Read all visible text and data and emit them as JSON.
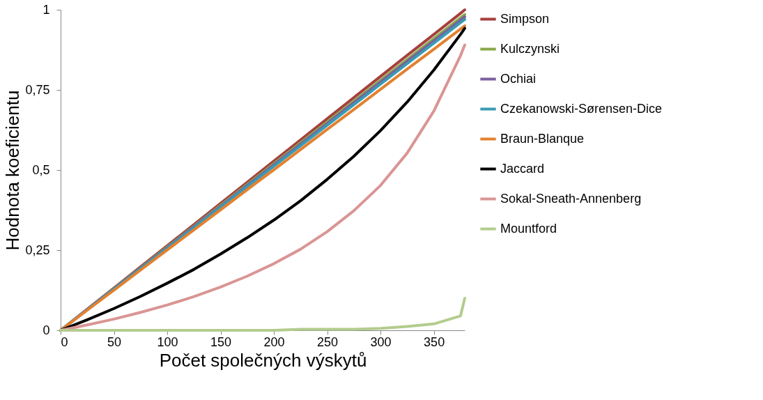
{
  "chart_data": {
    "type": "line",
    "xlabel": "Počet společných výskytů",
    "ylabel": "Hodnota koeficientu",
    "x": [
      0,
      25,
      50,
      75,
      100,
      125,
      150,
      175,
      200,
      225,
      250,
      275,
      300,
      325,
      350,
      375,
      379
    ],
    "xlim": [
      0,
      379
    ],
    "xticks": [
      0,
      50,
      100,
      150,
      200,
      250,
      300,
      350
    ],
    "ylim": [
      0,
      1
    ],
    "yticks": [
      0,
      {
        "value": 0.25,
        "label": "0,25"
      },
      {
        "value": 0.5,
        "label": "0,5"
      },
      {
        "value": 0.75,
        "label": "0,75"
      },
      1
    ],
    "grid": false,
    "legend": "right",
    "marker": "none",
    "line_style": "solid",
    "series": [
      {
        "name": "Simpson",
        "color": "#a5403d",
        "values": [
          0,
          0.066,
          0.132,
          0.198,
          0.264,
          0.33,
          0.396,
          0.462,
          0.528,
          0.594,
          0.66,
          0.726,
          0.792,
          0.858,
          0.923,
          0.989,
          1
        ]
      },
      {
        "name": "Kulczynski",
        "color": "#8aa84a",
        "values": [
          0,
          0.065,
          0.13,
          0.195,
          0.26,
          0.325,
          0.39,
          0.455,
          0.52,
          0.585,
          0.65,
          0.715,
          0.78,
          0.845,
          0.91,
          0.975,
          0.985
        ]
      },
      {
        "name": "Ochiai",
        "color": "#7a5fa0",
        "values": [
          0,
          0.065,
          0.129,
          0.194,
          0.258,
          0.323,
          0.387,
          0.452,
          0.516,
          0.581,
          0.645,
          0.71,
          0.774,
          0.839,
          0.903,
          0.968,
          0.978
        ]
      },
      {
        "name": "Czekanowski-Sørensen-Dice",
        "color": "#3a9ab4",
        "values": [
          0,
          0.064,
          0.128,
          0.192,
          0.256,
          0.32,
          0.384,
          0.448,
          0.512,
          0.576,
          0.64,
          0.704,
          0.768,
          0.832,
          0.896,
          0.96,
          0.97
        ]
      },
      {
        "name": "Braun-Blanque",
        "color": "#e3812f",
        "values": [
          0,
          0.063,
          0.125,
          0.188,
          0.251,
          0.313,
          0.376,
          0.439,
          0.501,
          0.564,
          0.627,
          0.689,
          0.752,
          0.815,
          0.877,
          0.94,
          0.95
        ]
      },
      {
        "name": "Jaccard",
        "color": "#000000",
        "values": [
          0,
          0.033,
          0.068,
          0.106,
          0.147,
          0.19,
          0.238,
          0.289,
          0.344,
          0.404,
          0.471,
          0.543,
          0.623,
          0.712,
          0.812,
          0.923,
          0.942
        ]
      },
      {
        "name": "Sokal-Sneath-Annenberg",
        "color": "#d99594",
        "values": [
          0,
          0.017,
          0.035,
          0.056,
          0.079,
          0.105,
          0.135,
          0.169,
          0.208,
          0.253,
          0.308,
          0.373,
          0.452,
          0.553,
          0.684,
          0.857,
          0.89
        ]
      },
      {
        "name": "Mountford",
        "color": "#b3cc8e",
        "values": [
          0,
          0,
          0,
          0,
          0,
          0,
          0,
          0,
          0,
          0.003,
          0.003,
          0.003,
          0.006,
          0.012,
          0.02,
          0.045,
          0.1
        ]
      }
    ]
  }
}
